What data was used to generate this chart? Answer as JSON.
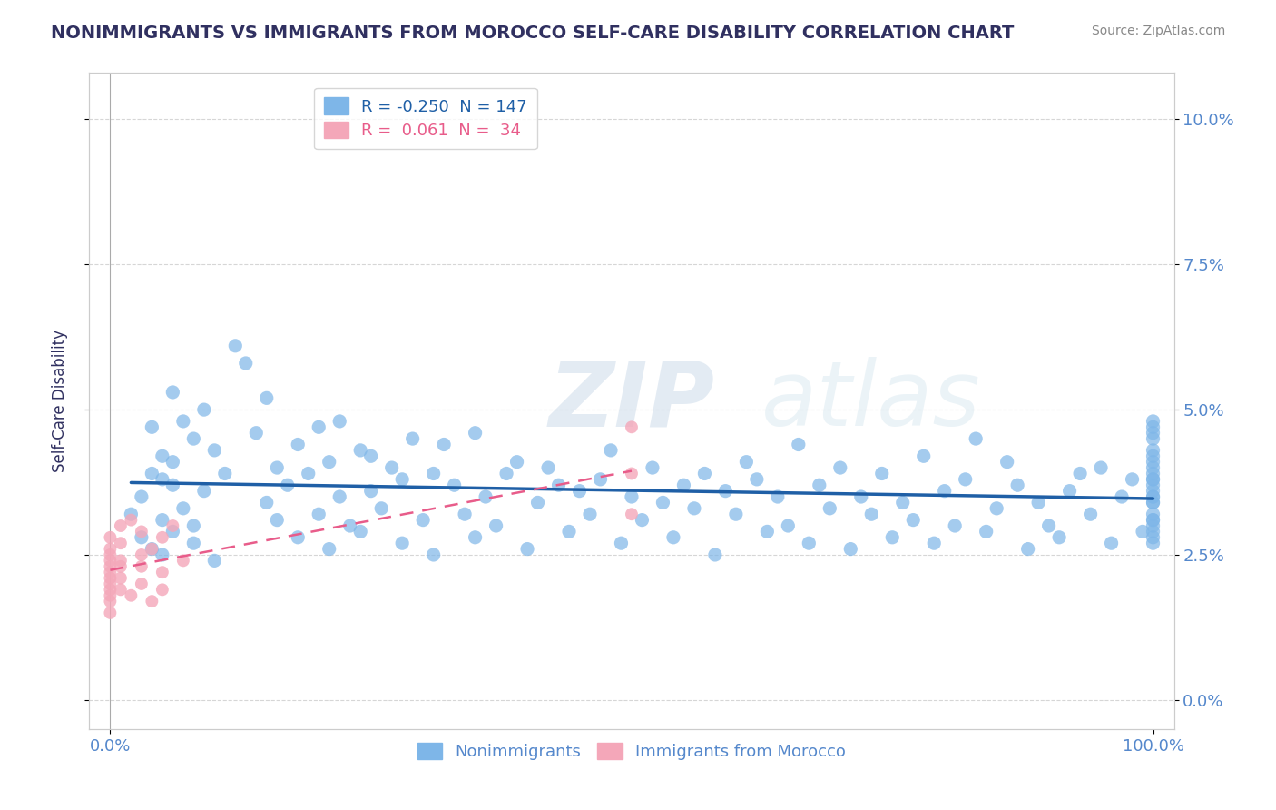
{
  "title": "NONIMMIGRANTS VS IMMIGRANTS FROM MOROCCO SELF-CARE DISABILITY CORRELATION CHART",
  "source": "Source: ZipAtlas.com",
  "xlabel": "",
  "ylabel": "Self-Care Disability",
  "y_tick_labels": [
    "0.0%",
    "2.5%",
    "5.0%",
    "7.5%",
    "10.0%"
  ],
  "y_tick_values": [
    0.0,
    2.5,
    5.0,
    7.5,
    10.0
  ],
  "x_tick_labels": [
    "0.0%",
    "100.0%"
  ],
  "x_tick_values": [
    0.0,
    100.0
  ],
  "xlim": [
    -2,
    102
  ],
  "ylim": [
    -0.5,
    10.8
  ],
  "nonimmigrant_R": -0.25,
  "nonimmigrant_N": 147,
  "immigrant_R": 0.061,
  "immigrant_N": 34,
  "nonimmigrant_color": "#7EB6E8",
  "immigrant_color": "#F4A7B9",
  "nonimmigrant_line_color": "#1F5FA6",
  "immigrant_line_color": "#E85C8A",
  "background_color": "#FFFFFF",
  "plot_bg_color": "#FFFFFF",
  "grid_color": "#CCCCCC",
  "title_color": "#303060",
  "axis_color": "#5588CC",
  "source_color": "#888888",
  "watermark_text": "ZIPatlas",
  "watermark_color_zip": "#AABBD0",
  "watermark_color_atlas": "#CCDDEE",
  "nonimmigrant_x": [
    2,
    3,
    3,
    4,
    4,
    4,
    5,
    5,
    5,
    5,
    6,
    6,
    6,
    6,
    7,
    7,
    8,
    8,
    8,
    9,
    9,
    10,
    10,
    11,
    12,
    13,
    14,
    15,
    15,
    16,
    16,
    17,
    18,
    18,
    19,
    20,
    20,
    21,
    21,
    22,
    22,
    23,
    24,
    24,
    25,
    25,
    26,
    27,
    28,
    28,
    29,
    30,
    31,
    31,
    32,
    33,
    34,
    35,
    35,
    36,
    37,
    38,
    39,
    40,
    41,
    42,
    43,
    44,
    45,
    46,
    47,
    48,
    49,
    50,
    51,
    52,
    53,
    54,
    55,
    56,
    57,
    58,
    59,
    60,
    61,
    62,
    63,
    64,
    65,
    66,
    67,
    68,
    69,
    70,
    71,
    72,
    73,
    74,
    75,
    76,
    77,
    78,
    79,
    80,
    81,
    82,
    83,
    84,
    85,
    86,
    87,
    88,
    89,
    90,
    91,
    92,
    93,
    94,
    95,
    96,
    97,
    98,
    99,
    100,
    100,
    100,
    100,
    100,
    100,
    100,
    100,
    100,
    100,
    100,
    100,
    100,
    100,
    100,
    100,
    100,
    100,
    100,
    100,
    100,
    100,
    100,
    100
  ],
  "nonimmigrant_y": [
    3.2,
    2.8,
    3.5,
    4.7,
    3.9,
    2.6,
    4.2,
    3.1,
    2.5,
    3.8,
    5.3,
    3.7,
    4.1,
    2.9,
    4.8,
    3.3,
    3.0,
    4.5,
    2.7,
    5.0,
    3.6,
    4.3,
    2.4,
    3.9,
    6.1,
    5.8,
    4.6,
    3.4,
    5.2,
    4.0,
    3.1,
    3.7,
    4.4,
    2.8,
    3.9,
    4.7,
    3.2,
    4.1,
    2.6,
    3.5,
    4.8,
    3.0,
    4.3,
    2.9,
    3.6,
    4.2,
    3.3,
    4.0,
    3.8,
    2.7,
    4.5,
    3.1,
    3.9,
    2.5,
    4.4,
    3.7,
    3.2,
    4.6,
    2.8,
    3.5,
    3.0,
    3.9,
    4.1,
    2.6,
    3.4,
    4.0,
    3.7,
    2.9,
    3.6,
    3.2,
    3.8,
    4.3,
    2.7,
    3.5,
    3.1,
    4.0,
    3.4,
    2.8,
    3.7,
    3.3,
    3.9,
    2.5,
    3.6,
    3.2,
    4.1,
    3.8,
    2.9,
    3.5,
    3.0,
    4.4,
    2.7,
    3.7,
    3.3,
    4.0,
    2.6,
    3.5,
    3.2,
    3.9,
    2.8,
    3.4,
    3.1,
    4.2,
    2.7,
    3.6,
    3.0,
    3.8,
    4.5,
    2.9,
    3.3,
    4.1,
    3.7,
    2.6,
    3.4,
    3.0,
    2.8,
    3.6,
    3.9,
    3.2,
    4.0,
    2.7,
    3.5,
    3.8,
    2.9,
    3.1,
    4.3,
    3.5,
    3.8,
    4.1,
    2.9,
    4.6,
    3.2,
    3.7,
    4.8,
    3.4,
    3.0,
    3.5,
    2.8,
    4.2,
    3.6,
    3.9,
    4.5,
    3.1,
    2.7,
    3.4,
    3.8,
    4.0,
    4.7
  ],
  "immigrant_x": [
    0,
    0,
    0,
    0,
    0,
    0,
    0,
    0,
    0,
    0,
    0,
    0,
    1,
    1,
    1,
    1,
    1,
    1,
    2,
    2,
    3,
    3,
    3,
    3,
    4,
    4,
    5,
    5,
    5,
    6,
    7,
    50,
    50,
    50
  ],
  "immigrant_y": [
    2.1,
    2.3,
    1.8,
    2.5,
    1.9,
    2.4,
    2.0,
    1.7,
    2.6,
    2.2,
    2.8,
    1.5,
    3.0,
    2.4,
    1.9,
    2.7,
    2.1,
    2.3,
    3.1,
    1.8,
    2.5,
    2.0,
    2.9,
    2.3,
    1.7,
    2.6,
    2.2,
    1.9,
    2.8,
    3.0,
    2.4,
    4.7,
    3.9,
    3.2
  ],
  "legend_nonimmigrant_label": "Nonimmigrants",
  "legend_immigrant_label": "Immigrants from Morocco",
  "figsize": [
    14.06,
    8.92
  ],
  "dpi": 100
}
